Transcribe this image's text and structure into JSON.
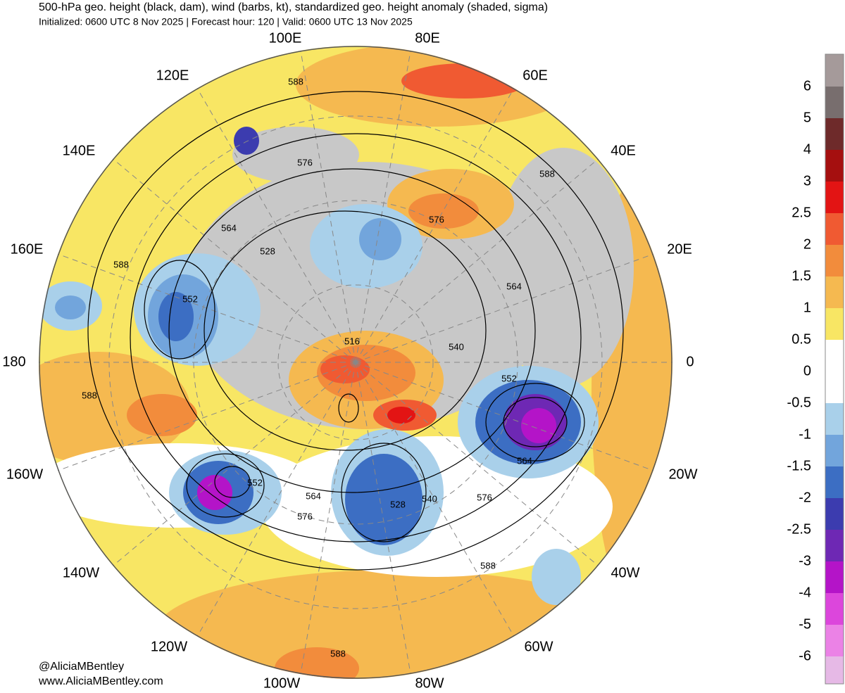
{
  "header": {
    "title": "500-hPa geo. height (black, dam), wind (barbs, kt), standardized geo. height anomaly (shaded, sigma)",
    "subtitle": "Initialized: 0600 UTC 8 Nov 2025 | Forecast hour: 120 | Valid: 0600 UTC 13 Nov 2025"
  },
  "map": {
    "longitude_labels": [
      "100E",
      "80E",
      "120E",
      "60E",
      "140E",
      "40E",
      "160E",
      "20E",
      "180",
      "0",
      "160W",
      "20W",
      "140W",
      "40W",
      "120W",
      "60W",
      "100W",
      "80W"
    ],
    "contour_labels": [
      588,
      576,
      588,
      576,
      564,
      528,
      588,
      552,
      564,
      516,
      540,
      552,
      588,
      564,
      552,
      564,
      540,
      528,
      576,
      576,
      588,
      588
    ]
  },
  "colorbar": {
    "colors": [
      "#a59a9a",
      "#786e6e",
      "#6e2a2a",
      "#a50f0f",
      "#e31414",
      "#f05a32",
      "#f28c3c",
      "#f5b950",
      "#f8e664",
      "#ffffff",
      "#ffffff",
      "#a9d0ea",
      "#72a5dc",
      "#3c6ec3",
      "#3c3caf",
      "#6e28b4",
      "#b414c8",
      "#dc46dc",
      "#eb82e6",
      "#e6b9e6"
    ],
    "labels": [
      6,
      5,
      4,
      3,
      2.5,
      2,
      1.5,
      1,
      0.5,
      0,
      -0.5,
      -1,
      -1.5,
      -2,
      -2.5,
      -3,
      -4,
      -5,
      -6
    ]
  },
  "credits": [
    "@AliciaMBentley",
    "www.AliciaMBentley.com"
  ]
}
